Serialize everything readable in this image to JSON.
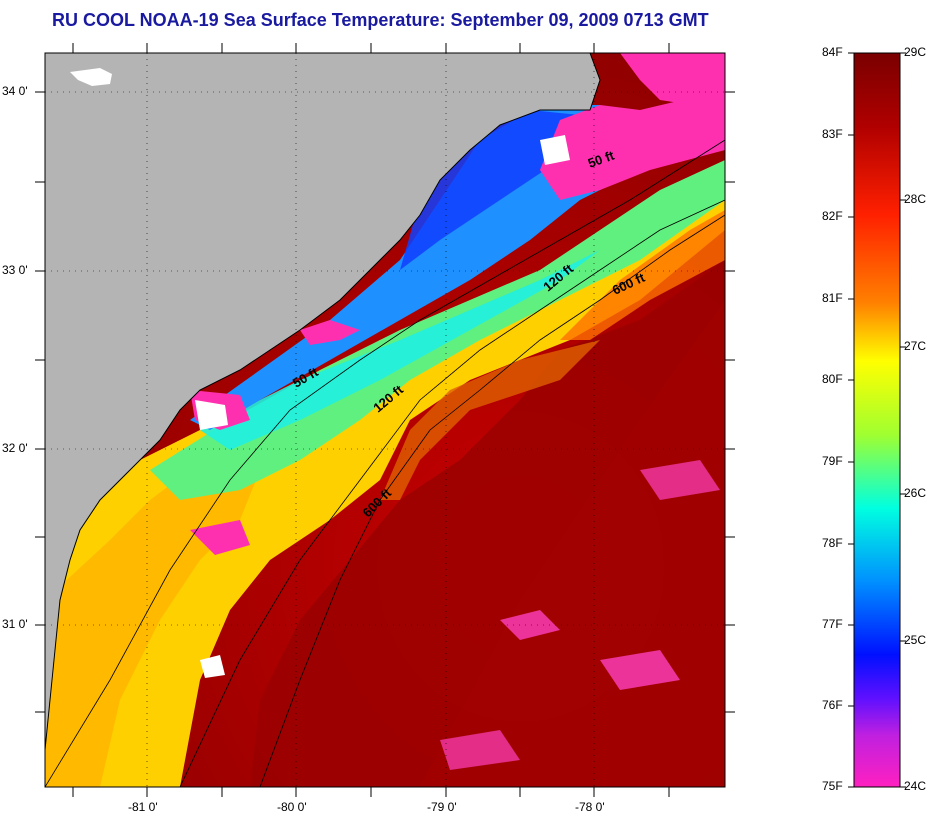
{
  "title": "RU COOL  NOAA-19  Sea Surface Temperature:  September 09, 2009 0713 GMT",
  "axes": {
    "lat_ticks": [
      "34 0'",
      "33 0'",
      "32 0'",
      "31 0'"
    ],
    "lon_ticks": [
      "-81 0'",
      "-80 0'",
      "-79 0'",
      "-78 0'"
    ]
  },
  "isobaths": [
    "50 ft",
    "120 ft",
    "600 ft",
    "50 ft",
    "120 ft",
    "600 ft"
  ],
  "colorbar": {
    "fahrenheit": [
      "84F",
      "83F",
      "82F",
      "81F",
      "80F",
      "79F",
      "78F",
      "77F",
      "76F",
      "75F"
    ],
    "celsius": [
      "29C",
      "28C",
      "27C",
      "26C",
      "25C",
      "24C"
    ]
  },
  "colors": {
    "land": "#b4b4b4",
    "cloud": "#ff30b0",
    "title": "#1a1aa0"
  }
}
